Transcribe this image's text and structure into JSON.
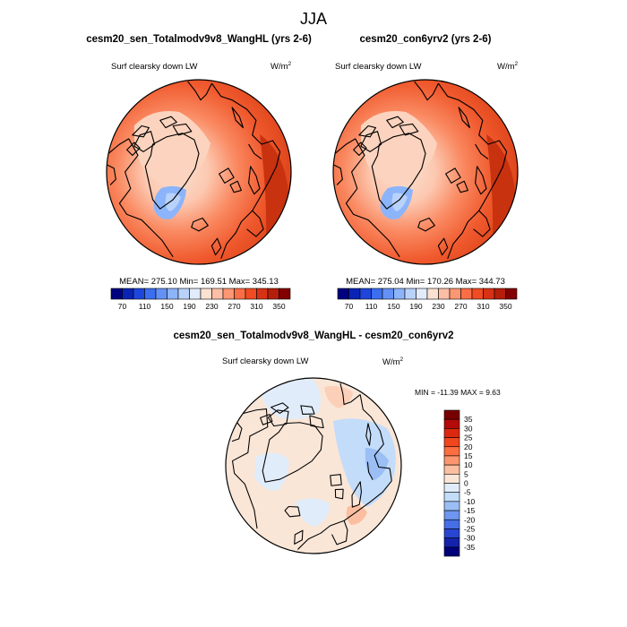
{
  "figure_title": "JJA",
  "chart_data": [
    {
      "type": "heatmap",
      "projection": "north-polar-stereographic",
      "title": "cesm20_sen_Totalmodv9v8_WangHL (yrs 2-6)",
      "variable": "Surf clearsky down LW",
      "units_base": "W/m",
      "units_sup": "2",
      "stats": {
        "mean": "275.10",
        "min": "169.51",
        "max": "345.13"
      },
      "stats_text": "MEAN= 275.10  Min= 169.51  Max= 345.13",
      "colorbar": {
        "orientation": "horizontal",
        "levels": [
          70,
          90,
          110,
          130,
          150,
          170,
          190,
          210,
          230,
          250,
          270,
          290,
          310,
          330,
          350
        ],
        "tick_labels": [
          "70",
          "110",
          "150",
          "190",
          "230",
          "270",
          "310",
          "350"
        ],
        "colors": [
          "#000080",
          "#0a23b4",
          "#1e46dc",
          "#3c6ef0",
          "#6491f5",
          "#8cb4fa",
          "#b9d2fa",
          "#e1ebfa",
          "#fae1d2",
          "#fcbea5",
          "#fc9673",
          "#fa6e46",
          "#f04b23",
          "#d73214",
          "#b41e0a",
          "#820000"
        ]
      }
    },
    {
      "type": "heatmap",
      "projection": "north-polar-stereographic",
      "title": "cesm20_con6yrv2 (yrs 2-6)",
      "variable": "Surf clearsky down LW",
      "units_base": "W/m",
      "units_sup": "2",
      "stats": {
        "mean": "275.04",
        "min": "170.26",
        "max": "344.73"
      },
      "stats_text": "MEAN= 275.04  Min= 170.26  Max= 344.73",
      "colorbar": {
        "orientation": "horizontal",
        "levels": [
          70,
          90,
          110,
          130,
          150,
          170,
          190,
          210,
          230,
          250,
          270,
          290,
          310,
          330,
          350
        ],
        "tick_labels": [
          "70",
          "110",
          "150",
          "190",
          "230",
          "270",
          "310",
          "350"
        ],
        "colors": [
          "#000080",
          "#0a23b4",
          "#1e46dc",
          "#3c6ef0",
          "#6491f5",
          "#8cb4fa",
          "#b9d2fa",
          "#e1ebfa",
          "#fae1d2",
          "#fcbea5",
          "#fc9673",
          "#fa6e46",
          "#f04b23",
          "#d73214",
          "#b41e0a",
          "#820000"
        ]
      }
    },
    {
      "type": "heatmap",
      "projection": "north-polar-stereographic",
      "title": "cesm20_sen_Totalmodv9v8_WangHL - cesm20_con6yrv2",
      "variable": "Surf clearsky down LW",
      "units_base": "W/m",
      "units_sup": "2",
      "stats": {
        "min": "-11.39",
        "max": "9.63"
      },
      "stats_text": "MIN = -11.39 MAX =   9.63",
      "colorbar": {
        "orientation": "vertical",
        "levels": [
          35,
          30,
          25,
          20,
          15,
          10,
          5,
          0,
          -5,
          -10,
          -15,
          -20,
          -25,
          -30,
          -35
        ],
        "tick_labels": [
          "35",
          "30",
          "25",
          "20",
          "15",
          "10",
          "5",
          "0",
          "-5",
          "-10",
          "-15",
          "-20",
          "-25",
          "-30",
          "-35"
        ],
        "colors": [
          "#780000",
          "#b40a0a",
          "#dc280f",
          "#f0461e",
          "#fa6e41",
          "#fc966e",
          "#fcbea0",
          "#fae6d7",
          "#e1ecfa",
          "#c3dcfa",
          "#9bbef5",
          "#6e96f0",
          "#466ee6",
          "#2846d2",
          "#1423aa",
          "#000078"
        ]
      }
    }
  ]
}
